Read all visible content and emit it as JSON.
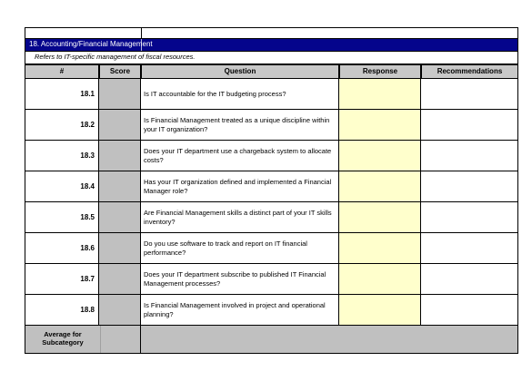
{
  "section": {
    "title": "18. Accounting/Financial Management",
    "subtitle": "Refers to IT-specific management of fiscal resources."
  },
  "headers": {
    "num": "#",
    "score": "Score",
    "question": "Question",
    "response": "Response",
    "recommendations": "Recommendations"
  },
  "rows": [
    {
      "num": "18.1",
      "question": "Is IT accountable for the IT budgeting process?"
    },
    {
      "num": "18.2",
      "question": "Is Financial Management treated as a unique discipline within your IT organization?"
    },
    {
      "num": "18.3",
      "question": "Does your IT department use a chargeback system to allocate costs?"
    },
    {
      "num": "18.4",
      "question": "Has your IT organization defined and implemented a Financial Manager role?"
    },
    {
      "num": "18.5",
      "question": "Are Financial Management skills a distinct part of your IT skills inventory?"
    },
    {
      "num": "18.6",
      "question": "Do you use software to track and report on IT financial performance?"
    },
    {
      "num": "18.7",
      "question": "Does your IT department subscribe to published IT Financial Management processes?"
    },
    {
      "num": "18.8",
      "question": "Is Financial Management involved in project and operational planning?"
    }
  ],
  "footer": {
    "average_label": "Average for Subcategory"
  },
  "colors": {
    "header_bar": "#05058c",
    "score_fill": "#c0c0c0",
    "response_fill": "#ffffcc"
  }
}
